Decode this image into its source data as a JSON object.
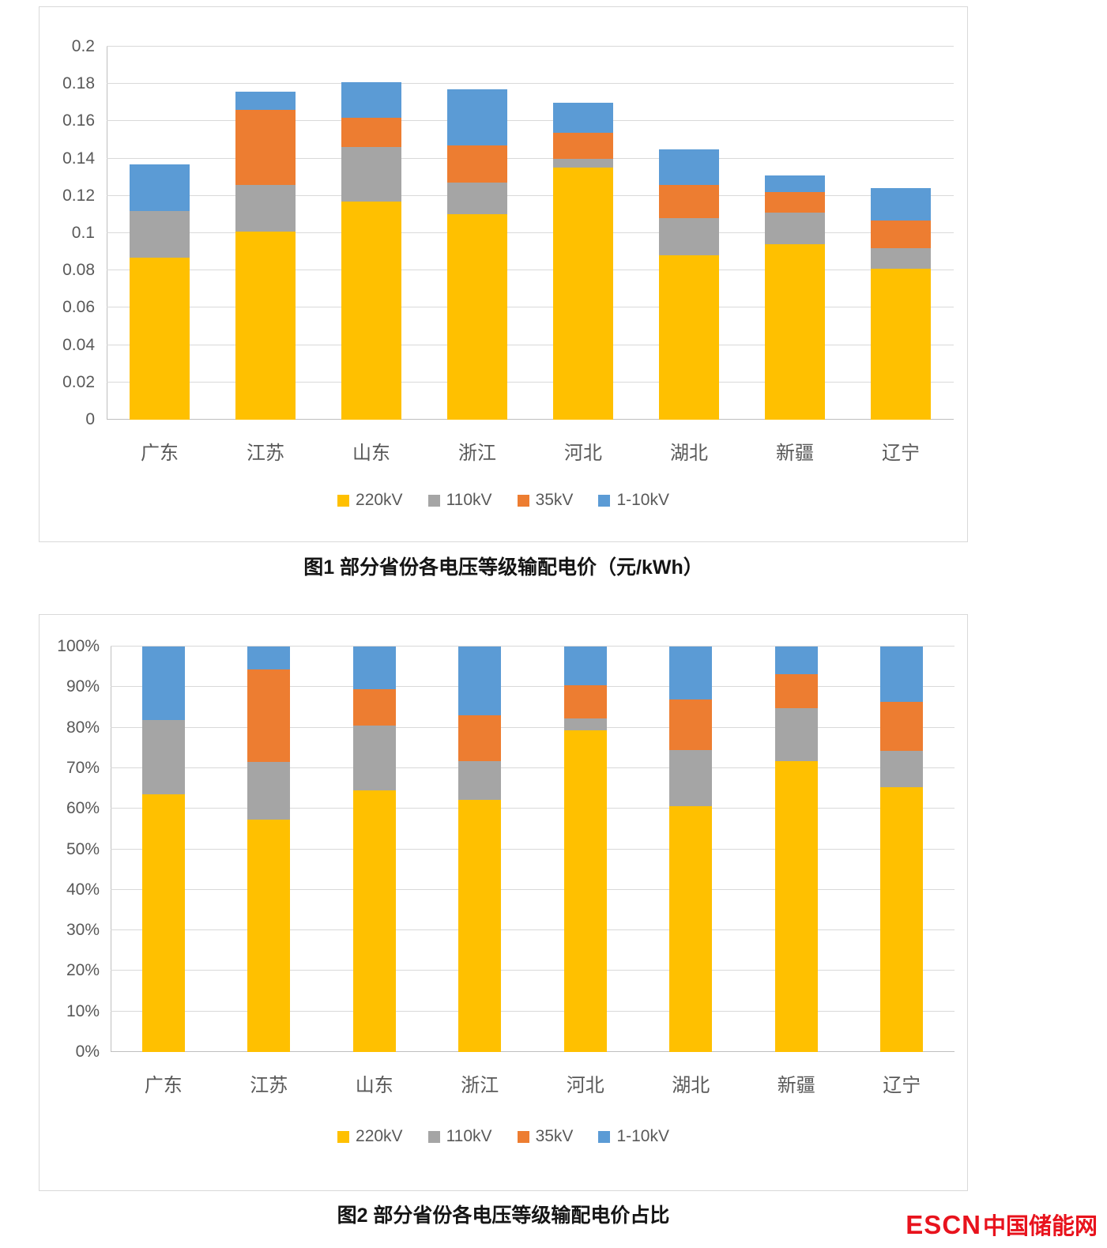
{
  "captions": {
    "fig1": "图1 部分省份各电压等级输配电价（元/kWh）",
    "fig2": "图2 部分省份各电压等级输配电价占比"
  },
  "footer": {
    "brand_en": "ESCN",
    "brand_cn": "中国储能网",
    "brand_color": "#e8131d"
  },
  "chart_data": [
    {
      "id": "fig1",
      "type": "bar",
      "stacked": true,
      "title": "图1 部分省份各电压等级输配电价（元/kWh）",
      "xlabel": "",
      "ylabel": "",
      "unit": "元/kWh",
      "grid": true,
      "legend_position": "bottom",
      "categories": [
        "广东",
        "江苏",
        "山东",
        "浙江",
        "河北",
        "湖北",
        "新疆",
        "辽宁"
      ],
      "series": [
        {
          "name": "220kV",
          "color": "#FFC000",
          "values": [
            0.087,
            0.101,
            0.117,
            0.11,
            0.135,
            0.088,
            0.094,
            0.081
          ]
        },
        {
          "name": "110kV",
          "color": "#A5A5A5",
          "values": [
            0.025,
            0.025,
            0.029,
            0.017,
            0.005,
            0.02,
            0.017,
            0.011
          ]
        },
        {
          "name": "35kV",
          "color": "#ED7D31",
          "values": [
            0,
            0.04,
            0.016,
            0.02,
            0.014,
            0.018,
            0.011,
            0.015
          ]
        },
        {
          "name": "1-10kV",
          "color": "#5B9BD5",
          "values": [
            0.025,
            0.01,
            0.019,
            0.03,
            0.016,
            0.019,
            0.009,
            0.017
          ]
        }
      ],
      "ylim": [
        0,
        0.2
      ],
      "ytick_labels": [
        "0",
        "0.02",
        "0.04",
        "0.06",
        "0.08",
        "0.1",
        "0.12",
        "0.14",
        "0.16",
        "0.18",
        "0.2"
      ]
    },
    {
      "id": "fig2",
      "type": "bar",
      "stacked": true,
      "title": "图2 部分省份各电压等级输配电价占比",
      "xlabel": "",
      "ylabel": "",
      "unit": "%",
      "grid": true,
      "legend_position": "bottom",
      "categories": [
        "广东",
        "江苏",
        "山东",
        "浙江",
        "河北",
        "湖北",
        "新疆",
        "辽宁"
      ],
      "series": [
        {
          "name": "220kV",
          "color": "#FFC000",
          "values": [
            63.5,
            57.4,
            64.6,
            62.1,
            79.4,
            60.7,
            71.8,
            65.3
          ]
        },
        {
          "name": "110kV",
          "color": "#A5A5A5",
          "values": [
            18.3,
            14.2,
            16.0,
            9.6,
            2.9,
            13.8,
            13.0,
            8.9
          ]
        },
        {
          "name": "35kV",
          "color": "#ED7D31",
          "values": [
            0,
            22.7,
            8.8,
            11.3,
            8.2,
            12.4,
            8.4,
            12.1
          ]
        },
        {
          "name": "1-10kV",
          "color": "#5B9BD5",
          "values": [
            18.2,
            5.7,
            10.6,
            17.0,
            9.5,
            13.1,
            6.8,
            13.7
          ]
        }
      ],
      "ylim": [
        0,
        100
      ],
      "ytick_labels": [
        "0%",
        "10%",
        "20%",
        "30%",
        "40%",
        "50%",
        "60%",
        "70%",
        "80%",
        "90%",
        "100%"
      ]
    }
  ]
}
